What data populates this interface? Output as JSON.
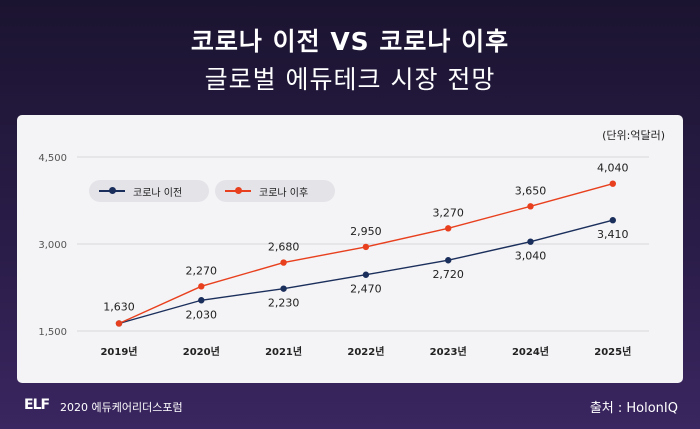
{
  "header": {
    "title_line1": "코로나 이전 VS 코로나 이후",
    "title_line2": "글로벌 에듀테크 시장 전망"
  },
  "footer": {
    "logo": "ELF",
    "left_text": "2020 에듀케어리더스포럼",
    "source": "출처 : HolonIQ"
  },
  "colors": {
    "before": "#1b2f5c",
    "after": "#e8401e"
  },
  "chart_data": {
    "type": "line",
    "title": "",
    "unit_label": "(단위:억달러)",
    "categories": [
      "2019년",
      "2020년",
      "2021년",
      "2022년",
      "2023년",
      "2024년",
      "2025년"
    ],
    "y_ticks": [
      "1,500",
      "3,000",
      "4,500"
    ],
    "ylim": [
      1500,
      4500
    ],
    "grid": true,
    "legend_placement": "top-left",
    "series": [
      {
        "name": "코로나 이전",
        "values": [
          1630,
          2030,
          2230,
          2470,
          2720,
          3040,
          3410
        ],
        "labels": [
          "1,630",
          "2,030",
          "2,230",
          "2,470",
          "2,720",
          "3,040",
          "3,410"
        ]
      },
      {
        "name": "코로나 이후",
        "values": [
          1630,
          2270,
          2680,
          2950,
          3270,
          3650,
          4040
        ],
        "labels": [
          "",
          "2,270",
          "2,680",
          "2,950",
          "3,270",
          "3,650",
          "4,040"
        ]
      }
    ]
  }
}
